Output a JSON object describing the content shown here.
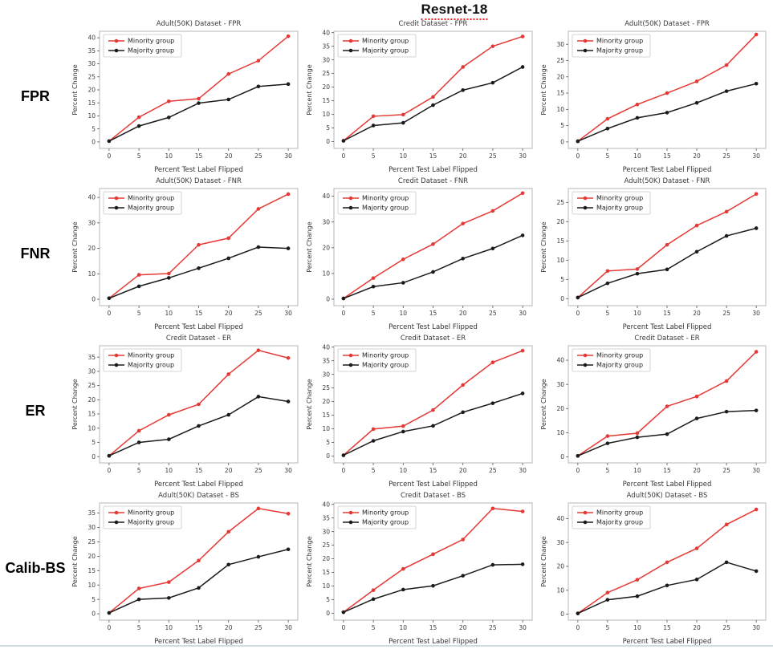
{
  "page": {
    "title": "Resnet-18"
  },
  "colors": {
    "minority": "#e53935",
    "majority": "#1b1b1b",
    "plot_border": "#b0b0b0",
    "title_underline": "#e0262c",
    "tick_text": "#3b3b3b"
  },
  "legend": {
    "items": [
      "Minority group",
      "Majority group"
    ],
    "position": "top-left"
  },
  "row_labels": [
    "FPR",
    "FNR",
    "ER",
    "Calib-BS"
  ],
  "axis": {
    "xlabel": "Percent Test Label Flipped",
    "ylabel": "Percent Change",
    "xticks": [
      0,
      5,
      10,
      15,
      20,
      25,
      30
    ]
  },
  "chart_data": [
    {
      "type": "line",
      "row": "FPR",
      "title": "Adult(50K) Dataset - FPR",
      "x": [
        0,
        5,
        10,
        15,
        20,
        25,
        30
      ],
      "xlabel": "Percent Test Label Flipped",
      "ylabel": "Percent Change",
      "yticks": [
        0,
        5,
        10,
        15,
        20,
        25,
        30,
        35,
        40
      ],
      "ylim": [
        -2.5,
        42.5
      ],
      "legend_position": "top-left",
      "series": [
        {
          "name": "Minority group",
          "color": "#e53935",
          "values": [
            0.3,
            9.5,
            15.6,
            16.6,
            26.1,
            31.2,
            40.6
          ]
        },
        {
          "name": "Majority group",
          "color": "#1b1b1b",
          "values": [
            0.3,
            6.1,
            9.4,
            14.9,
            16.3,
            21.3,
            22.2
          ]
        }
      ]
    },
    {
      "type": "line",
      "row": "FPR",
      "title": "Credit Dataset - FPR",
      "x": [
        0,
        5,
        10,
        15,
        20,
        25,
        30
      ],
      "xlabel": "Percent Test Label Flipped",
      "ylabel": "Percent Change",
      "yticks": [
        0,
        5,
        10,
        15,
        20,
        25,
        30,
        35,
        40
      ],
      "ylim": [
        -2.5,
        40.5
      ],
      "legend_position": "top-left",
      "series": [
        {
          "name": "Minority group",
          "color": "#e53935",
          "values": [
            0.3,
            9.3,
            9.9,
            16.4,
            27.4,
            35.0,
            38.6
          ]
        },
        {
          "name": "Majority group",
          "color": "#1b1b1b",
          "values": [
            0.3,
            5.9,
            6.9,
            13.4,
            18.9,
            21.6,
            27.4
          ]
        }
      ]
    },
    {
      "type": "line",
      "row": "FPR",
      "title": "Adult(50K) Dataset - FPR",
      "x": [
        0,
        5,
        10,
        15,
        20,
        25,
        30
      ],
      "xlabel": "Percent Test Label Flipped",
      "ylabel": "Percent Change",
      "yticks": [
        0,
        5,
        10,
        15,
        20,
        25,
        30
      ],
      "ylim": [
        -2,
        34
      ],
      "legend_position": "top-left",
      "series": [
        {
          "name": "Minority group",
          "color": "#e53935",
          "values": [
            0.2,
            7.1,
            11.5,
            15.0,
            18.6,
            23.6,
            33.0
          ]
        },
        {
          "name": "Majority group",
          "color": "#1b1b1b",
          "values": [
            0.2,
            4.1,
            7.4,
            9.0,
            12.0,
            15.6,
            17.9
          ]
        }
      ]
    },
    {
      "type": "line",
      "row": "FNR",
      "title": "Adult(50K) Dataset - FNR",
      "x": [
        0,
        5,
        10,
        15,
        20,
        25,
        30
      ],
      "xlabel": "Percent Test Label Flipped",
      "ylabel": "Percent Change",
      "yticks": [
        0,
        10,
        20,
        30,
        40
      ],
      "ylim": [
        -2.5,
        43.5
      ],
      "legend_position": "top-left",
      "series": [
        {
          "name": "Minority group",
          "color": "#e53935",
          "values": [
            0.4,
            9.6,
            10.1,
            21.4,
            24.0,
            35.5,
            41.3
          ]
        },
        {
          "name": "Majority group",
          "color": "#1b1b1b",
          "values": [
            0.4,
            5.1,
            8.4,
            12.2,
            16.1,
            20.5,
            20.0
          ]
        }
      ]
    },
    {
      "type": "line",
      "row": "FNR",
      "title": "Credit Dataset - FNR",
      "x": [
        0,
        5,
        10,
        15,
        20,
        25,
        30
      ],
      "xlabel": "Percent Test Label Flipped",
      "ylabel": "Percent Change",
      "yticks": [
        0,
        10,
        20,
        30,
        40
      ],
      "ylim": [
        -2.5,
        43
      ],
      "legend_position": "top-left",
      "series": [
        {
          "name": "Minority group",
          "color": "#e53935",
          "values": [
            0.3,
            8.2,
            15.5,
            21.4,
            29.4,
            34.3,
            41.2
          ]
        },
        {
          "name": "Majority group",
          "color": "#1b1b1b",
          "values": [
            0.3,
            4.9,
            6.4,
            10.6,
            15.8,
            19.7,
            24.8
          ]
        }
      ]
    },
    {
      "type": "line",
      "row": "FNR",
      "title": "Adult(50K) Dataset - FNR",
      "x": [
        0,
        5,
        10,
        15,
        20,
        25,
        30
      ],
      "xlabel": "Percent Test Label Flipped",
      "ylabel": "Percent Change",
      "yticks": [
        0,
        5,
        10,
        15,
        20,
        25
      ],
      "ylim": [
        -1.8,
        28.6
      ],
      "legend_position": "top-left",
      "series": [
        {
          "name": "Minority group",
          "color": "#e53935",
          "values": [
            0.3,
            7.2,
            7.7,
            14.0,
            19.0,
            22.6,
            27.2
          ]
        },
        {
          "name": "Majority group",
          "color": "#1b1b1b",
          "values": [
            0.3,
            4.0,
            6.5,
            7.6,
            12.2,
            16.3,
            18.3
          ]
        }
      ]
    },
    {
      "type": "line",
      "row": "ER",
      "title": "Credit Dataset - ER",
      "x": [
        0,
        5,
        10,
        15,
        20,
        25,
        30
      ],
      "xlabel": "Percent Test Label Flipped",
      "ylabel": "Percent Change",
      "yticks": [
        0,
        5,
        10,
        15,
        20,
        25,
        30,
        35
      ],
      "ylim": [
        -2.2,
        39
      ],
      "legend_position": "top-left",
      "series": [
        {
          "name": "Minority group",
          "color": "#e53935",
          "values": [
            0.3,
            9.1,
            14.7,
            18.4,
            29.0,
            37.4,
            34.7
          ]
        },
        {
          "name": "Majority group",
          "color": "#1b1b1b",
          "values": [
            0.3,
            5.0,
            6.1,
            10.8,
            14.7,
            21.1,
            19.4
          ]
        }
      ]
    },
    {
      "type": "line",
      "row": "ER",
      "title": "Credit Dataset - ER",
      "x": [
        0,
        5,
        10,
        15,
        20,
        25,
        30
      ],
      "xlabel": "Percent Test Label Flipped",
      "ylabel": "Percent Change",
      "yticks": [
        0,
        5,
        10,
        15,
        20,
        25,
        30,
        35,
        40
      ],
      "ylim": [
        -2.5,
        40.5
      ],
      "legend_position": "top-left",
      "series": [
        {
          "name": "Minority group",
          "color": "#e53935",
          "values": [
            0.3,
            9.9,
            11.0,
            16.9,
            26.1,
            34.4,
            38.7
          ]
        },
        {
          "name": "Majority group",
          "color": "#1b1b1b",
          "values": [
            0.3,
            5.6,
            9.0,
            11.1,
            16.1,
            19.4,
            23.0
          ]
        }
      ]
    },
    {
      "type": "line",
      "row": "ER",
      "title": "Credit Dataset - ER",
      "x": [
        0,
        5,
        10,
        15,
        20,
        25,
        30
      ],
      "xlabel": "Percent Test Label Flipped",
      "ylabel": "Percent Change",
      "yticks": [
        0,
        10,
        20,
        30,
        40
      ],
      "ylim": [
        -2.5,
        46
      ],
      "legend_position": "top-left",
      "series": [
        {
          "name": "Minority group",
          "color": "#e53935",
          "values": [
            0.4,
            8.6,
            9.8,
            20.9,
            25.0,
            31.4,
            43.5
          ]
        },
        {
          "name": "Majority group",
          "color": "#1b1b1b",
          "values": [
            0.4,
            5.6,
            8.1,
            9.4,
            15.9,
            18.7,
            19.2
          ]
        }
      ]
    },
    {
      "type": "line",
      "row": "Calib-BS",
      "title": "Adult(50K) Dataset - BS",
      "x": [
        0,
        5,
        10,
        15,
        20,
        25,
        30
      ],
      "xlabel": "Percent Test Label Flipped",
      "ylabel": "Percent Change",
      "yticks": [
        0,
        5,
        10,
        15,
        20,
        25,
        30,
        35
      ],
      "ylim": [
        -2.2,
        38.5
      ],
      "legend_position": "top-left",
      "series": [
        {
          "name": "Minority group",
          "color": "#e53935",
          "values": [
            0.3,
            8.8,
            11.0,
            18.5,
            28.5,
            36.6,
            34.8
          ]
        },
        {
          "name": "Majority group",
          "color": "#1b1b1b",
          "values": [
            0.3,
            5.0,
            5.5,
            9.0,
            17.1,
            19.8,
            22.4
          ]
        }
      ]
    },
    {
      "type": "line",
      "row": "Calib-BS",
      "title": "Credit Dataset - BS",
      "x": [
        0,
        5,
        10,
        15,
        20,
        25,
        30
      ],
      "xlabel": "Percent Test Label Flipped",
      "ylabel": "Percent Change",
      "yticks": [
        0,
        5,
        10,
        15,
        20,
        25,
        30,
        35,
        40
      ],
      "ylim": [
        -2.5,
        40.5
      ],
      "legend_position": "top-left",
      "series": [
        {
          "name": "Minority group",
          "color": "#e53935",
          "values": [
            0.4,
            8.5,
            16.3,
            21.7,
            27.1,
            38.5,
            37.4
          ]
        },
        {
          "name": "Majority group",
          "color": "#1b1b1b",
          "values": [
            0.4,
            5.2,
            8.7,
            10.1,
            13.8,
            17.8,
            18.0
          ]
        }
      ]
    },
    {
      "type": "line",
      "row": "Calib-BS",
      "title": "Adult(50K) Dataset - BS",
      "x": [
        0,
        5,
        10,
        15,
        20,
        25,
        30
      ],
      "xlabel": "Percent Test Label Flipped",
      "ylabel": "Percent Change",
      "yticks": [
        0,
        10,
        20,
        30,
        40
      ],
      "ylim": [
        -2.5,
        46.5
      ],
      "legend_position": "top-left",
      "series": [
        {
          "name": "Minority group",
          "color": "#e53935",
          "values": [
            0.3,
            9.0,
            14.4,
            21.7,
            27.5,
            37.5,
            43.8
          ]
        },
        {
          "name": "Majority group",
          "color": "#1b1b1b",
          "values": [
            0.3,
            6.0,
            7.5,
            12.0,
            14.5,
            21.7,
            18.0
          ]
        }
      ]
    }
  ]
}
